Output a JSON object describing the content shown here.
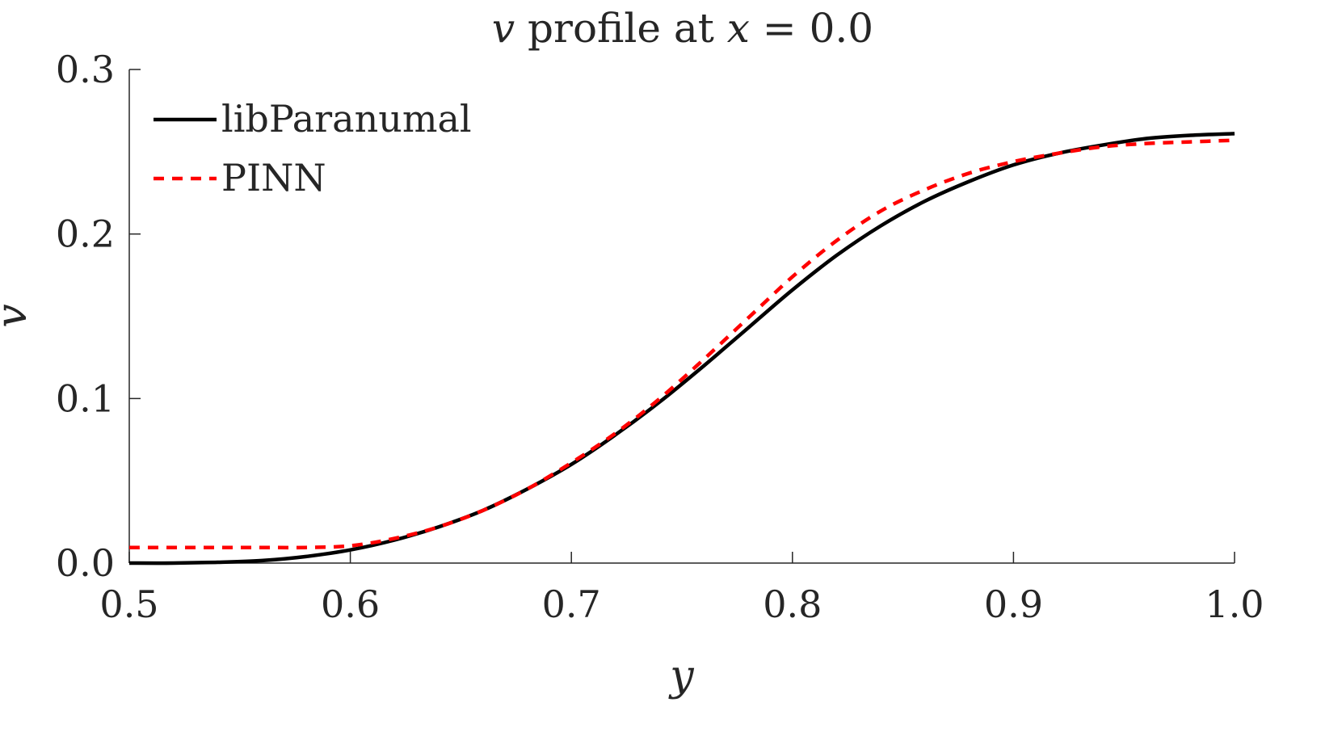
{
  "chart_data": {
    "type": "line",
    "title": {
      "prefix": "v",
      "middle": " profile at ",
      "var": "x",
      "suffix": " = 0.0"
    },
    "xlabel": "y",
    "ylabel": "v",
    "xlim": [
      0.5,
      1.0
    ],
    "ylim": [
      0.0,
      0.3
    ],
    "xticks": [
      0.5,
      0.6,
      0.7,
      0.8,
      0.9,
      1.0
    ],
    "xtick_labels": [
      "0.5",
      "0.6",
      "0.7",
      "0.8",
      "0.9",
      "1.0"
    ],
    "yticks": [
      0.0,
      0.1,
      0.2,
      0.3
    ],
    "ytick_labels": [
      "0.0",
      "0.1",
      "0.2",
      "0.3"
    ],
    "grid": false,
    "legend_position": "top-left",
    "series": [
      {
        "name": "libParanumal",
        "color": "#000000",
        "style": "solid",
        "x": [
          0.5,
          0.52,
          0.54,
          0.56,
          0.58,
          0.6,
          0.62,
          0.64,
          0.66,
          0.68,
          0.7,
          0.72,
          0.74,
          0.76,
          0.78,
          0.8,
          0.82,
          0.84,
          0.86,
          0.88,
          0.9,
          0.92,
          0.94,
          0.96,
          0.98,
          1.0
        ],
        "y": [
          0.0,
          0.0,
          0.0005,
          0.0015,
          0.004,
          0.008,
          0.014,
          0.022,
          0.032,
          0.045,
          0.06,
          0.078,
          0.098,
          0.12,
          0.143,
          0.166,
          0.187,
          0.205,
          0.22,
          0.232,
          0.242,
          0.249,
          0.254,
          0.258,
          0.26,
          0.261
        ]
      },
      {
        "name": "PINN",
        "color": "#ff0000",
        "style": "dashed",
        "x": [
          0.5,
          0.52,
          0.54,
          0.56,
          0.58,
          0.6,
          0.62,
          0.64,
          0.66,
          0.68,
          0.7,
          0.72,
          0.74,
          0.76,
          0.78,
          0.8,
          0.82,
          0.84,
          0.86,
          0.88,
          0.9,
          0.92,
          0.94,
          0.96,
          0.98,
          1.0
        ],
        "y": [
          0.0095,
          0.0095,
          0.0095,
          0.0095,
          0.0095,
          0.0105,
          0.015,
          0.022,
          0.032,
          0.045,
          0.061,
          0.079,
          0.1,
          0.124,
          0.149,
          0.174,
          0.196,
          0.214,
          0.227,
          0.237,
          0.244,
          0.249,
          0.253,
          0.255,
          0.256,
          0.257
        ]
      }
    ]
  }
}
